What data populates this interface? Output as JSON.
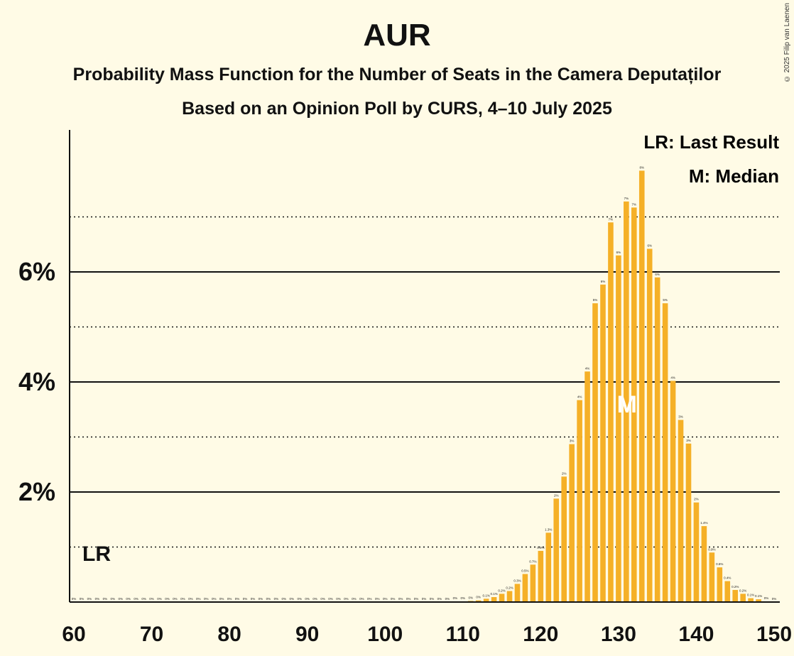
{
  "title": "AUR",
  "subtitle1": "Probability Mass Function for the Number of Seats in the Camera Deputaților",
  "subtitle2": "Based on an Opinion Poll by CURS, 4–10 July 2025",
  "copyright": "© 2025 Filip van Laenen",
  "legend": {
    "lr": "LR: Last Result",
    "median": "M: Median"
  },
  "markers": {
    "lr_label": "LR",
    "median_label": "M"
  },
  "colors": {
    "bar": "#f5b027",
    "background": "#fffbe6",
    "text": "#111111"
  },
  "chart_data": {
    "type": "bar",
    "title": "AUR",
    "xlabel": "",
    "ylabel": "",
    "xlim": [
      60,
      150
    ],
    "ylim": [
      0,
      8.5
    ],
    "x_ticks": [
      60,
      70,
      80,
      90,
      100,
      110,
      120,
      130,
      140,
      150
    ],
    "y_ticks_labeled": [
      {
        "value": 2,
        "label": "2%"
      },
      {
        "value": 4,
        "label": "4%"
      },
      {
        "value": 6,
        "label": "6%"
      }
    ],
    "y_gridlines_solid": [
      2,
      4,
      6
    ],
    "y_gridlines_dotted": [
      1,
      3,
      5,
      7
    ],
    "last_result": 62,
    "median": 131,
    "x": [
      60,
      61,
      62,
      63,
      64,
      65,
      66,
      67,
      68,
      69,
      70,
      71,
      72,
      73,
      74,
      75,
      76,
      77,
      78,
      79,
      80,
      81,
      82,
      83,
      84,
      85,
      86,
      87,
      88,
      89,
      90,
      91,
      92,
      93,
      94,
      95,
      96,
      97,
      98,
      99,
      100,
      101,
      102,
      103,
      104,
      105,
      106,
      107,
      108,
      109,
      110,
      111,
      112,
      113,
      114,
      115,
      116,
      117,
      118,
      119,
      120,
      121,
      122,
      123,
      124,
      125,
      126,
      127,
      128,
      129,
      130,
      131,
      132,
      133,
      134,
      135,
      136,
      137,
      138,
      139,
      140,
      141,
      142,
      143,
      144,
      145,
      146,
      147,
      148,
      149,
      150
    ],
    "values": [
      0,
      0,
      0,
      0,
      0,
      0,
      0,
      0,
      0,
      0,
      0,
      0,
      0,
      0,
      0,
      0,
      0,
      0,
      0,
      0,
      0,
      0,
      0,
      0,
      0,
      0,
      0,
      0,
      0,
      0,
      0,
      0,
      0,
      0,
      0,
      0,
      0,
      0,
      0,
      0,
      0,
      0,
      0,
      0,
      0,
      0,
      0,
      0,
      0,
      0.01,
      0.01,
      0.02,
      0.03,
      0.06,
      0.09,
      0.15,
      0.2,
      0.33,
      0.51,
      0.68,
      0.93,
      1.26,
      1.88,
      2.28,
      2.87,
      3.67,
      4.19,
      5.43,
      5.77,
      6.9,
      6.3,
      7.28,
      7.17,
      7.84,
      6.42,
      5.9,
      5.43,
      4.02,
      3.31,
      2.88,
      1.81,
      1.38,
      0.9,
      0.63,
      0.38,
      0.22,
      0.15,
      0.07,
      0.05,
      0.01,
      0
    ],
    "value_labels": [
      "0%",
      "0%",
      "0%",
      "0%",
      "0%",
      "0%",
      "0%",
      "0%",
      "0%",
      "0%",
      "0%",
      "0%",
      "0%",
      "0%",
      "0%",
      "0%",
      "0%",
      "0%",
      "0%",
      "0%",
      "0%",
      "0%",
      "0%",
      "0%",
      "0%",
      "0%",
      "0%",
      "0%",
      "0%",
      "0%",
      "0%",
      "0%",
      "0%",
      "0%",
      "0%",
      "0%",
      "0%",
      "0%",
      "0%",
      "0%",
      "0%",
      "0%",
      "0%",
      "0%",
      "0%",
      "0%",
      "0%",
      "0%",
      "0%",
      "0%",
      "0%",
      "0%",
      "0%",
      "0.1%",
      "0.1%",
      "0.2%",
      "0.2%",
      "0.3%",
      "0.5%",
      "0.7%",
      "0.9%",
      "1.3%",
      "2%",
      "2%",
      "3%",
      "4%",
      "4%",
      "5%",
      "6%",
      "7%",
      "6%",
      "7%",
      "7%",
      "8%",
      "6%",
      "6%",
      "5%",
      "4%",
      "3%",
      "3%",
      "2%",
      "1.4%",
      "0.9%",
      "0.6%",
      "0.4%",
      "0.2%",
      "0.2%",
      "0.1%",
      "0.1%",
      "0%",
      "0%"
    ]
  }
}
